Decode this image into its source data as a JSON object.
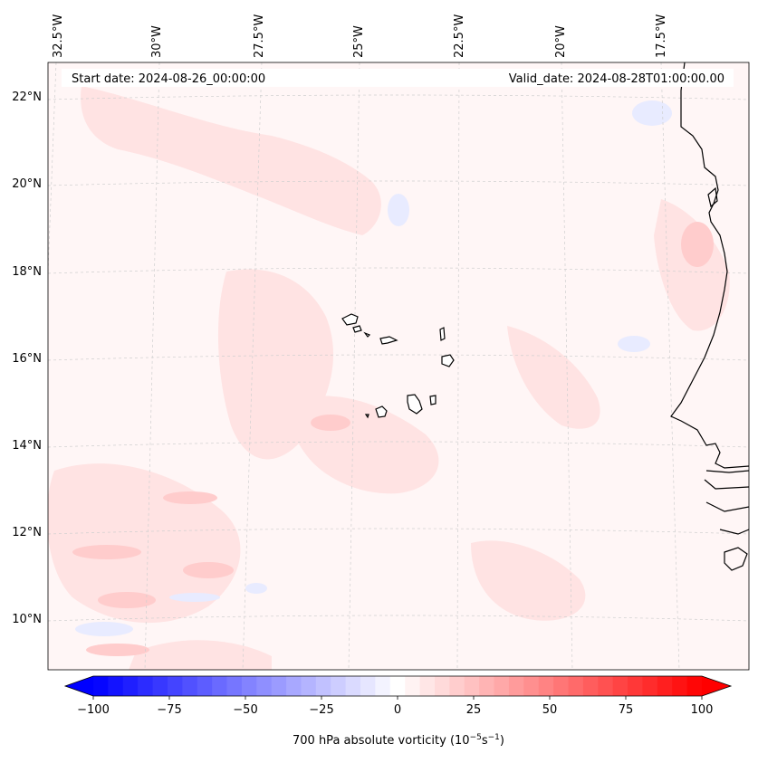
{
  "map": {
    "start_date_label": "Start date: 2024-08-26_00:00:00",
    "valid_date_label": "Valid_date: 2024-08-28T01:00:00.00",
    "longitude_labels": [
      "32.5°W",
      "30°W",
      "27.5°W",
      "25°W",
      "22.5°W",
      "20°W",
      "17.5°W"
    ],
    "latitude_labels": [
      "22°N",
      "20°N",
      "18°N",
      "16°N",
      "14°N",
      "12°N",
      "10°N"
    ],
    "field": "700 hPa absolute vorticity",
    "colors": {
      "background_field": "#fff6f6",
      "positive_light": "#ffe3e3",
      "positive_mid": "#ffd0d0",
      "positive_strong": "#ffb3b3",
      "negative_light": "#eef0ff",
      "negative_mid": "#dadcff",
      "coastline": "#000000",
      "gridline": "#c8c8c8"
    }
  },
  "colorbar": {
    "label": "700 hPa absolute vorticity (10",
    "label_exp1": "−5",
    "label_mid": "s",
    "label_exp2": "−1",
    "label_end": ")",
    "ticks": [
      "−100",
      "−75",
      "−50",
      "−25",
      "0",
      "25",
      "50",
      "75",
      "100"
    ],
    "min": -100,
    "max": 100,
    "levels": 41,
    "low_color": "#0000ff",
    "mid_color": "#ffffff",
    "high_color": "#ff0000"
  }
}
